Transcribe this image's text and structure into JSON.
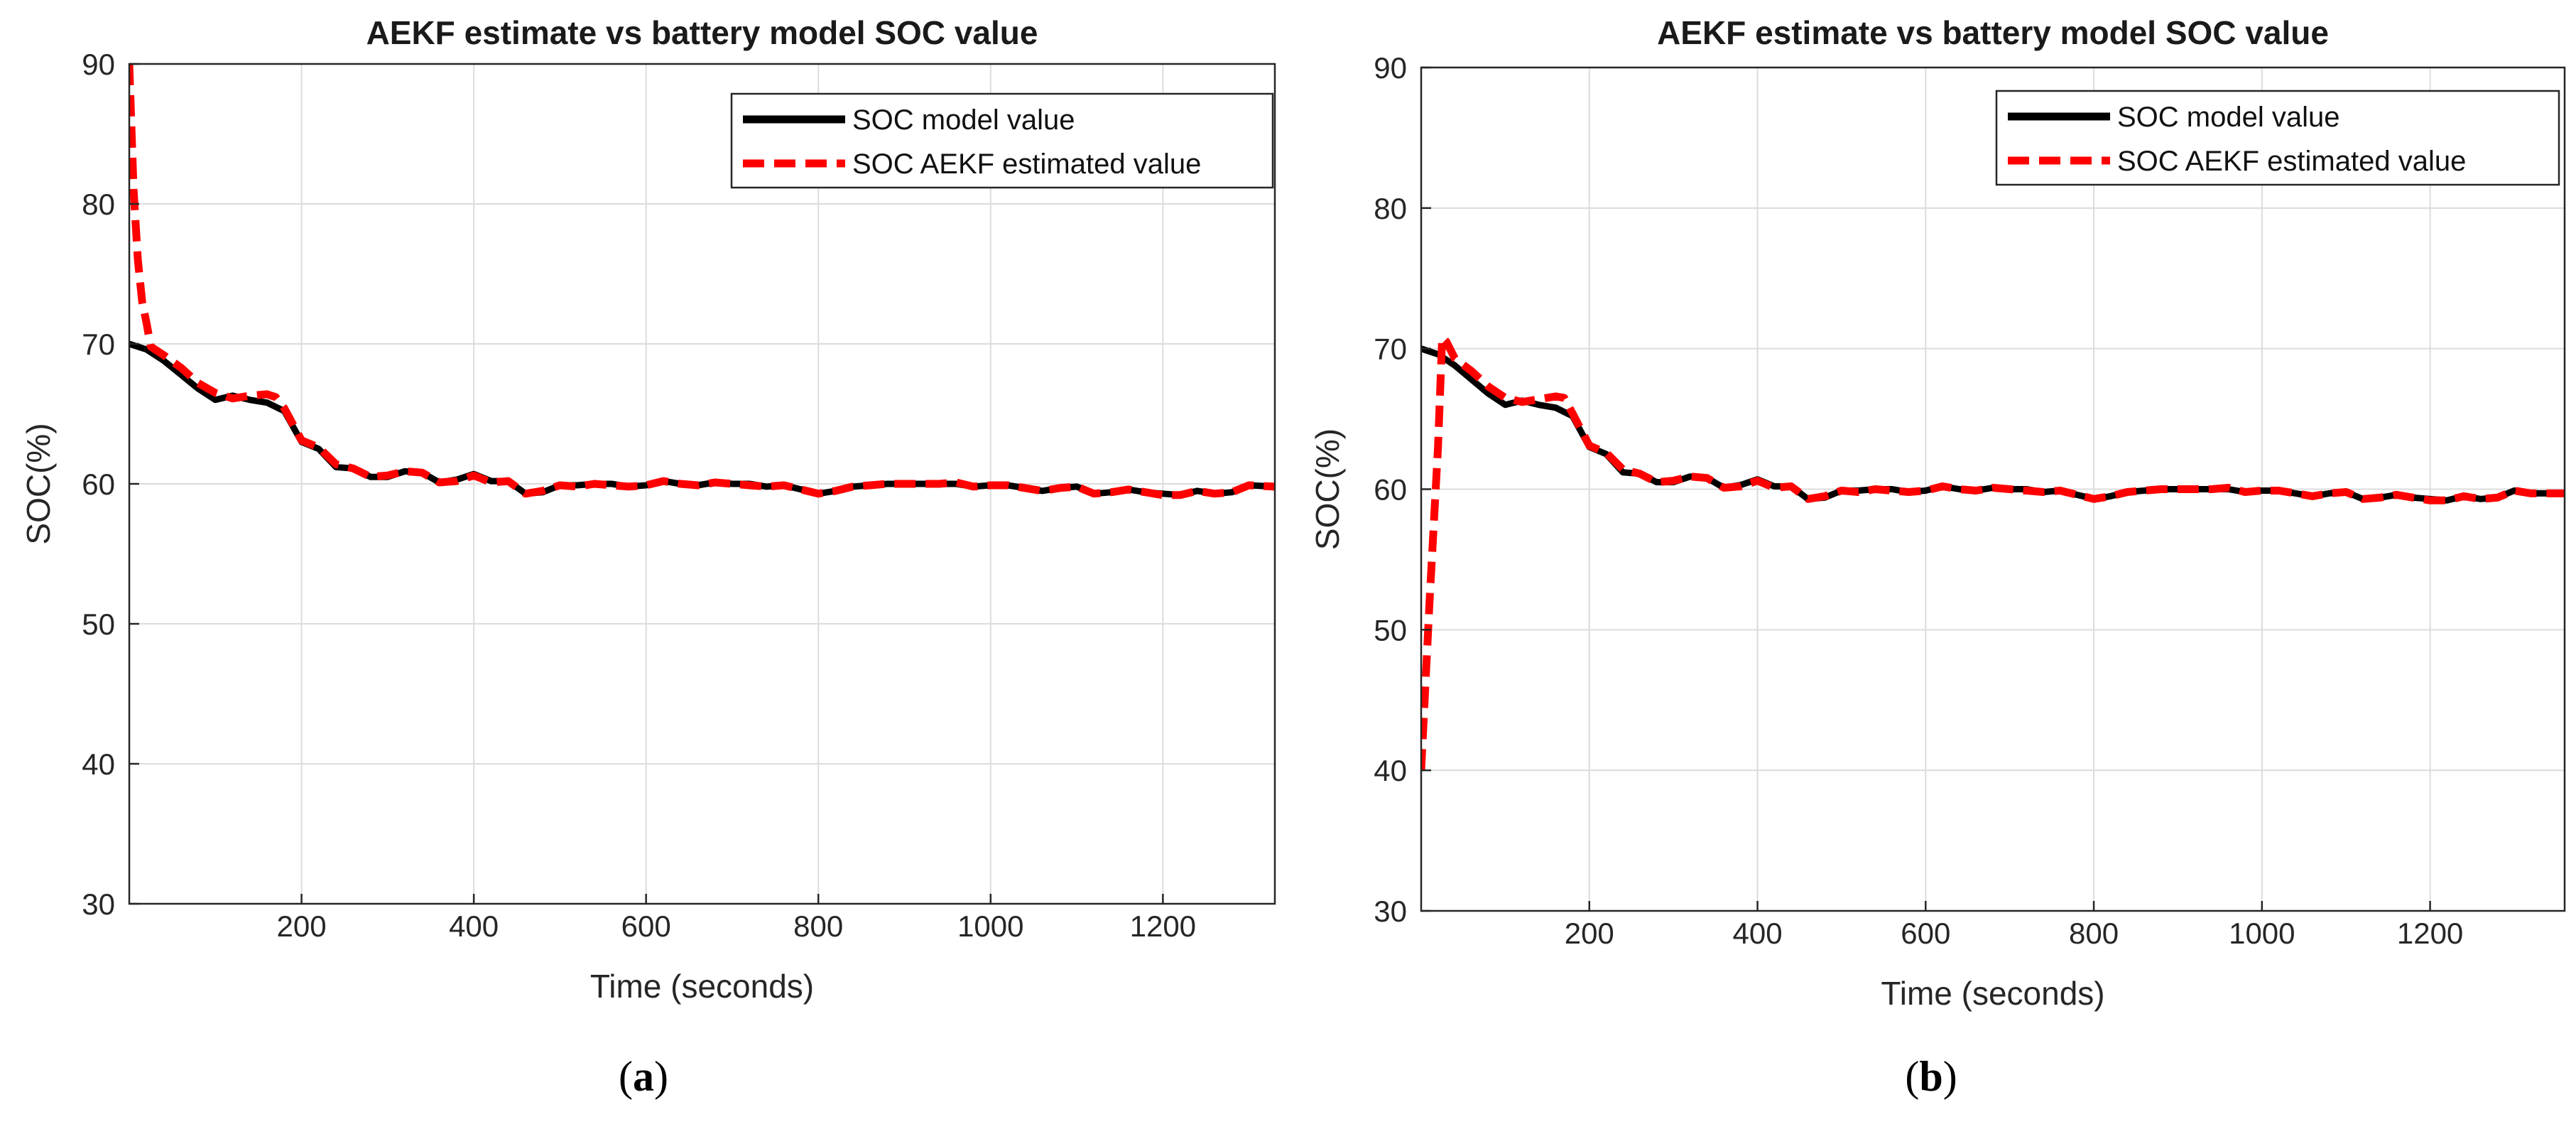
{
  "colors": {
    "model": "#000000",
    "estimate": "#ff0000",
    "grid": "#dcdcdc",
    "axis": "#262626"
  },
  "chart_data": [
    {
      "type": "line",
      "panel": "a",
      "title": "AEKF estimate vs battery model SOC value",
      "xlabel": "Time (seconds)",
      "ylabel": "SOC(%)",
      "xlim": [
        0,
        1330
      ],
      "ylim": [
        30,
        90
      ],
      "xticks": [
        200,
        400,
        600,
        800,
        1000,
        1200
      ],
      "yticks": [
        30,
        40,
        50,
        60,
        70,
        80,
        90
      ],
      "grid": true,
      "legend_position": "top-right",
      "caption_letter": "a",
      "series": [
        {
          "name": "SOC model value",
          "style": "solid",
          "x": [
            0,
            20,
            40,
            60,
            80,
            100,
            120,
            140,
            160,
            180,
            200,
            220,
            240,
            260,
            280,
            300,
            320,
            340,
            360,
            380,
            400,
            420,
            440,
            460,
            480,
            500,
            520,
            540,
            560,
            580,
            600,
            620,
            640,
            660,
            680,
            700,
            720,
            740,
            760,
            780,
            800,
            820,
            840,
            860,
            880,
            900,
            920,
            940,
            960,
            980,
            1000,
            1020,
            1040,
            1060,
            1080,
            1100,
            1120,
            1140,
            1160,
            1180,
            1200,
            1220,
            1240,
            1260,
            1280,
            1300,
            1330
          ],
          "y": [
            70,
            69.6,
            68.8,
            67.8,
            66.8,
            66,
            66.3,
            66,
            65.8,
            65.2,
            63,
            62.5,
            61.2,
            61.1,
            60.5,
            60.5,
            60.9,
            60.8,
            60.1,
            60.3,
            60.7,
            60.2,
            60.2,
            59.3,
            59.4,
            59.9,
            59.9,
            60,
            60,
            59.8,
            59.9,
            60.2,
            60,
            59.9,
            60.1,
            60,
            60,
            59.8,
            59.9,
            59.6,
            59.3,
            59.5,
            59.8,
            59.9,
            60,
            60,
            60,
            60,
            60,
            59.8,
            59.9,
            59.9,
            59.7,
            59.5,
            59.7,
            59.8,
            59.3,
            59.4,
            59.6,
            59.4,
            59.3,
            59.2,
            59.5,
            59.3,
            59.4,
            59.9,
            59.8
          ]
        },
        {
          "name": "SOC AEKF estimated value",
          "style": "dashed",
          "x": [
            0,
            5,
            10,
            15,
            20,
            25,
            40,
            60,
            80,
            100,
            120,
            140,
            160,
            170,
            180,
            200,
            220,
            240,
            260,
            280,
            300,
            320,
            340,
            360,
            380,
            400,
            420,
            440,
            460,
            480,
            500,
            520,
            540,
            560,
            580,
            600,
            620,
            640,
            660,
            680,
            700,
            720,
            740,
            760,
            780,
            800,
            820,
            840,
            860,
            880,
            900,
            920,
            940,
            960,
            980,
            1000,
            1020,
            1040,
            1060,
            1080,
            1100,
            1120,
            1140,
            1160,
            1180,
            1200,
            1220,
            1240,
            1260,
            1280,
            1300,
            1330
          ],
          "y": [
            90,
            81,
            76,
            73,
            71.5,
            69.8,
            69.2,
            68.3,
            67.2,
            66.5,
            66.1,
            66.3,
            66.4,
            66.2,
            65.4,
            63.1,
            62.6,
            61.4,
            61.1,
            60.5,
            60.6,
            60.9,
            60.8,
            60.1,
            60.2,
            60.6,
            60.1,
            60.2,
            59.3,
            59.5,
            59.9,
            59.8,
            60,
            59.9,
            59.8,
            59.9,
            60.2,
            60,
            59.9,
            60.1,
            60,
            59.9,
            59.8,
            59.9,
            59.6,
            59.3,
            59.5,
            59.8,
            59.9,
            60,
            60,
            60,
            60,
            60.1,
            59.8,
            59.9,
            59.9,
            59.7,
            59.5,
            59.7,
            59.8,
            59.3,
            59.4,
            59.6,
            59.4,
            59.2,
            59.2,
            59.5,
            59.3,
            59.4,
            59.9,
            59.8
          ]
        }
      ]
    },
    {
      "type": "line",
      "panel": "b",
      "title": "AEKF estimate vs battery model  SOC value",
      "xlabel": "Time (seconds)",
      "ylabel": "SOC(%)",
      "xlim": [
        0,
        1360
      ],
      "ylim": [
        30,
        90
      ],
      "xticks": [
        200,
        400,
        600,
        800,
        1000,
        1200
      ],
      "yticks": [
        30,
        40,
        50,
        60,
        70,
        80,
        90
      ],
      "grid": true,
      "legend_position": "top-right",
      "caption_letter": "b",
      "series": [
        {
          "name": "SOC model value",
          "style": "solid",
          "x": [
            0,
            20,
            40,
            60,
            80,
            100,
            120,
            140,
            160,
            180,
            200,
            220,
            240,
            260,
            280,
            300,
            320,
            340,
            360,
            380,
            400,
            420,
            440,
            460,
            480,
            500,
            520,
            540,
            560,
            580,
            600,
            620,
            640,
            660,
            680,
            700,
            720,
            740,
            760,
            780,
            800,
            820,
            840,
            860,
            880,
            900,
            920,
            940,
            960,
            980,
            1000,
            1020,
            1040,
            1060,
            1080,
            1100,
            1120,
            1140,
            1160,
            1180,
            1200,
            1220,
            1240,
            1260,
            1280,
            1300,
            1320,
            1360
          ],
          "y": [
            70,
            69.6,
            68.8,
            67.8,
            66.8,
            66,
            66.3,
            66,
            65.8,
            65.2,
            63,
            62.5,
            61.2,
            61.1,
            60.5,
            60.5,
            60.9,
            60.8,
            60.1,
            60.3,
            60.7,
            60.2,
            60.2,
            59.3,
            59.4,
            59.9,
            59.9,
            60,
            60,
            59.8,
            59.9,
            60.2,
            60,
            59.9,
            60.1,
            60,
            60,
            59.8,
            59.9,
            59.6,
            59.3,
            59.5,
            59.8,
            59.9,
            60,
            60,
            60,
            60,
            60,
            59.8,
            59.9,
            59.9,
            59.7,
            59.5,
            59.7,
            59.8,
            59.3,
            59.4,
            59.6,
            59.4,
            59.3,
            59.2,
            59.5,
            59.3,
            59.4,
            59.9,
            59.7,
            59.7
          ]
        },
        {
          "name": "SOC AEKF estimated value",
          "style": "dashed",
          "x": [
            0,
            10,
            20,
            25,
            30,
            40,
            60,
            80,
            100,
            120,
            140,
            160,
            170,
            180,
            200,
            220,
            240,
            260,
            280,
            300,
            320,
            340,
            360,
            380,
            400,
            420,
            440,
            460,
            480,
            500,
            520,
            540,
            560,
            580,
            600,
            620,
            640,
            660,
            680,
            700,
            720,
            740,
            760,
            780,
            800,
            820,
            840,
            860,
            880,
            900,
            920,
            940,
            960,
            980,
            1000,
            1020,
            1040,
            1060,
            1080,
            1100,
            1120,
            1140,
            1160,
            1180,
            1200,
            1220,
            1240,
            1260,
            1280,
            1300,
            1320,
            1360
          ],
          "y": [
            40,
            52,
            63,
            70.8,
            70.5,
            69.3,
            68.4,
            67.3,
            66.5,
            66.2,
            66.4,
            66.6,
            66.5,
            65.4,
            63.1,
            62.6,
            61.4,
            61.1,
            60.5,
            60.6,
            60.9,
            60.8,
            60.1,
            60.2,
            60.6,
            60.1,
            60.2,
            59.3,
            59.5,
            59.9,
            59.8,
            60,
            59.9,
            59.8,
            59.9,
            60.2,
            60,
            59.9,
            60.1,
            60,
            59.9,
            59.8,
            59.9,
            59.6,
            59.3,
            59.5,
            59.8,
            59.9,
            60,
            60,
            60,
            60,
            60.1,
            59.8,
            59.9,
            59.9,
            59.7,
            59.5,
            59.7,
            59.8,
            59.3,
            59.4,
            59.6,
            59.4,
            59.2,
            59.2,
            59.5,
            59.3,
            59.4,
            59.9,
            59.7,
            59.7
          ]
        }
      ]
    }
  ]
}
